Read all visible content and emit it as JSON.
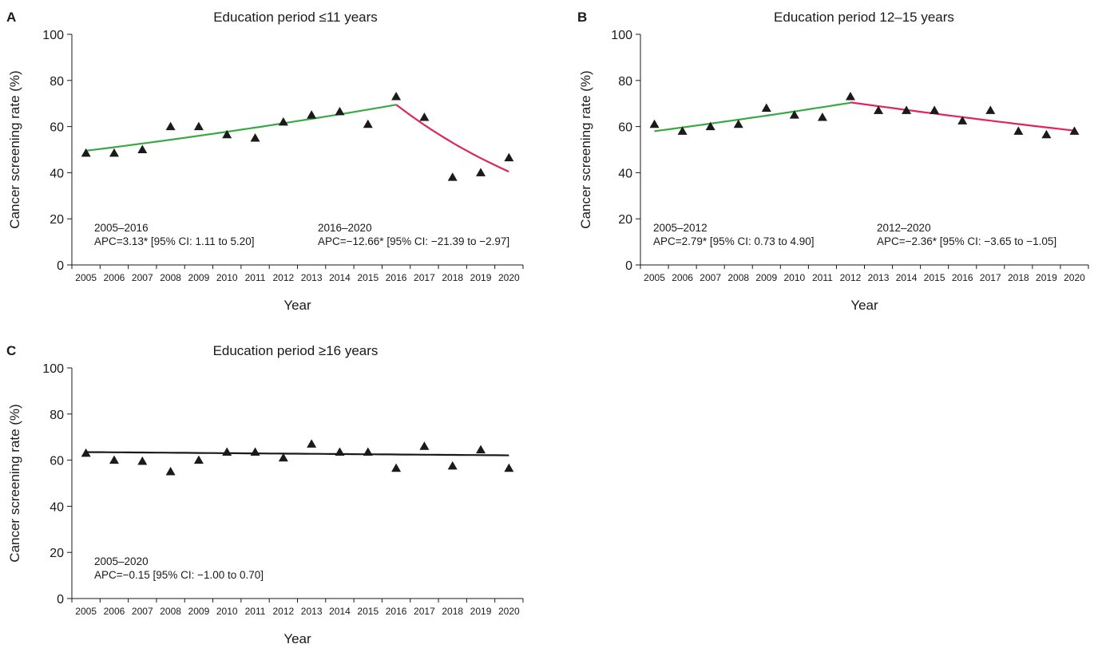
{
  "chart_data": [
    {
      "type": "scatter",
      "panel": "A",
      "title": "Education period ≤11 years",
      "xlabel": "Year",
      "ylabel": "Cancer screening rate (%)",
      "ylim": [
        0,
        100
      ],
      "yticks": [
        0,
        20,
        40,
        60,
        80,
        100
      ],
      "categories": [
        "2005",
        "2006",
        "2007",
        "2008",
        "2009",
        "2010",
        "2011",
        "2012",
        "2013",
        "2014",
        "2015",
        "2016",
        "2017",
        "2018",
        "2019",
        "2020"
      ],
      "series": [
        {
          "marker": "triangle",
          "values": [
            48.5,
            48.5,
            50,
            60,
            60,
            56.5,
            55,
            62,
            65,
            66.5,
            61,
            73,
            64,
            38,
            40,
            46.5
          ]
        }
      ],
      "trend_segments": [
        {
          "label": "2005–2016",
          "color": "#3aa845",
          "from": "2005",
          "to": "2016",
          "apc": 3.13,
          "start_value": 49.5
        },
        {
          "label": "2016–2020",
          "color": "#e0245e",
          "from": "2016",
          "to": "2020",
          "apc": -12.66,
          "start_value": 69.5
        }
      ],
      "annotations": [
        {
          "period": "2005–2016",
          "text": "APC=3.13* [95% CI: 1.11 to 5.20]"
        },
        {
          "period": "2016–2020",
          "text": "APC=−12.66* [95% CI: −21.39 to −2.97]"
        }
      ],
      "legend": "none",
      "grid": false
    },
    {
      "type": "scatter",
      "panel": "B",
      "title": "Education period 12–15 years",
      "xlabel": "Year",
      "ylabel": "Cancer screening rate (%)",
      "ylim": [
        0,
        100
      ],
      "yticks": [
        0,
        20,
        40,
        60,
        80,
        100
      ],
      "categories": [
        "2005",
        "2006",
        "2007",
        "2008",
        "2009",
        "2010",
        "2011",
        "2012",
        "2013",
        "2014",
        "2015",
        "2016",
        "2017",
        "2018",
        "2019",
        "2020"
      ],
      "series": [
        {
          "marker": "triangle",
          "values": [
            61,
            58,
            60,
            61,
            68,
            65,
            64,
            73,
            67,
            67,
            67,
            62.5,
            67,
            58,
            56.5,
            58
          ]
        }
      ],
      "trend_segments": [
        {
          "label": "2005–2012",
          "color": "#3aa845",
          "from": "2005",
          "to": "2012",
          "apc": 2.79,
          "start_value": 58
        },
        {
          "label": "2012–2020",
          "color": "#e0245e",
          "from": "2012",
          "to": "2020",
          "apc": -2.36,
          "start_value": 70.5
        }
      ],
      "annotations": [
        {
          "period": "2005–2012",
          "text": "APC=2.79* [95% CI: 0.73 to 4.90]"
        },
        {
          "period": "2012–2020",
          "text": "APC=−2.36* [95% CI: −3.65 to −1.05]"
        }
      ],
      "legend": "none",
      "grid": false
    },
    {
      "type": "scatter",
      "panel": "C",
      "title": "Education period ≥16 years",
      "xlabel": "Year",
      "ylabel": "Cancer screening rate (%)",
      "ylim": [
        0,
        100
      ],
      "yticks": [
        0,
        20,
        40,
        60,
        80,
        100
      ],
      "categories": [
        "2005",
        "2006",
        "2007",
        "2008",
        "2009",
        "2010",
        "2011",
        "2012",
        "2013",
        "2014",
        "2015",
        "2016",
        "2017",
        "2018",
        "2019",
        "2020"
      ],
      "series": [
        {
          "marker": "triangle",
          "values": [
            63,
            60,
            59.5,
            55,
            60,
            63.5,
            63.5,
            61,
            67,
            63.5,
            63.5,
            56.5,
            66,
            57.5,
            64.5,
            56.5
          ]
        }
      ],
      "trend_segments": [
        {
          "label": "2005–2020",
          "color": "#1a1a1a",
          "from": "2005",
          "to": "2020",
          "apc": -0.15,
          "start_value": 63.5
        }
      ],
      "annotations": [
        {
          "period": "2005–2020",
          "text": "APC=−0.15 [95% CI: −1.00 to 0.70]"
        }
      ],
      "legend": "none",
      "grid": false
    }
  ]
}
